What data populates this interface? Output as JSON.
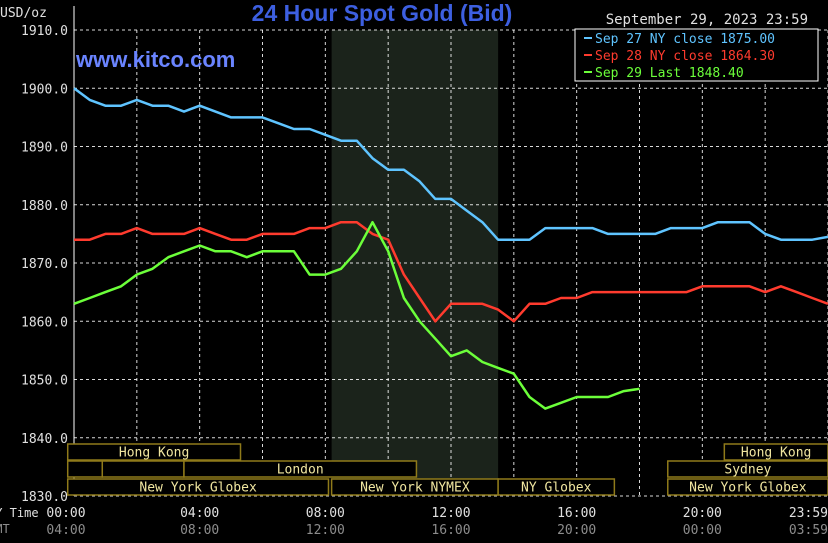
{
  "header": {
    "title": "24 Hour Spot Gold (Bid)",
    "date": "September 29, 2023 23:59",
    "units": "USD/oz",
    "watermark": "www.kitco.com"
  },
  "colors": {
    "background": "#000000",
    "grid": "#ffffff",
    "title": "#3d5fe0",
    "watermark": "#6a84ff",
    "session_shade": "#1b231b",
    "session_border": "#8f7a1a",
    "session_text": "#f0e6a0",
    "time_label": "#e0e0e0",
    "gmt_label": "#8c8c8c"
  },
  "chart_data": {
    "type": "line",
    "title": "24 Hour Spot Gold (Bid)",
    "ylabel": "USD/oz",
    "ylim": [
      1830,
      1910
    ],
    "xlim": [
      0,
      24
    ],
    "grid": true,
    "legend_position": "top-right",
    "y_ticks": [
      "1910.0",
      "1900.0",
      "1890.0",
      "1880.0",
      "1870.0",
      "1860.0",
      "1850.0",
      "1840.0",
      "1830.0"
    ],
    "y_tick_values": [
      1910,
      1900,
      1890,
      1880,
      1870,
      1860,
      1850,
      1840,
      1830
    ],
    "x_ticks_ny": [
      "00:00",
      "04:00",
      "08:00",
      "12:00",
      "16:00",
      "20:00",
      "23:59"
    ],
    "x_ticks_gmt": [
      "04:00",
      "08:00",
      "12:00",
      "16:00",
      "20:00",
      "00:00",
      "03:59"
    ],
    "x_tick_hours": [
      0,
      4,
      8,
      12,
      16,
      20,
      24
    ],
    "row_label_ny": "NY Time",
    "row_label_gmt": "GMT",
    "highlight_hours": [
      8.2,
      13.5
    ],
    "series": [
      {
        "name": "Sep 27 NY close 1875.00",
        "color": "#5fc4ff",
        "x": [
          0,
          0.5,
          1,
          1.5,
          2,
          2.5,
          3,
          3.5,
          4,
          4.5,
          5,
          5.5,
          6,
          6.5,
          7,
          7.5,
          8,
          8.5,
          9,
          9.5,
          10,
          10.5,
          11,
          11.5,
          12,
          12.5,
          13,
          13.5,
          14,
          14.5,
          15,
          15.5,
          16,
          16.5,
          17,
          17.5,
          18,
          18.5,
          19,
          19.5,
          20,
          20.5,
          21,
          21.5,
          22,
          22.5,
          23,
          23.5,
          24
        ],
        "values": [
          1900,
          1898,
          1897,
          1897,
          1898,
          1897,
          1897,
          1896,
          1897,
          1896,
          1895,
          1895,
          1895,
          1894,
          1893,
          1893,
          1892,
          1891,
          1891,
          1888,
          1886,
          1886,
          1884,
          1881,
          1881,
          1879,
          1877,
          1874,
          1874,
          1874,
          1876,
          1876,
          1876,
          1876,
          1875,
          1875,
          1875,
          1875,
          1876,
          1876,
          1876,
          1877,
          1877,
          1877,
          1875,
          1874,
          1874,
          1874,
          1874.5
        ]
      },
      {
        "name": "Sep 28 NY close 1864.30",
        "color": "#ff3b2e",
        "x": [
          0,
          0.5,
          1,
          1.5,
          2,
          2.5,
          3,
          3.5,
          4,
          4.5,
          5,
          5.5,
          6,
          6.5,
          7,
          7.5,
          8,
          8.5,
          9,
          9.5,
          10,
          10.5,
          11,
          11.5,
          12,
          12.5,
          13,
          13.5,
          14,
          14.5,
          15,
          15.5,
          16,
          16.5,
          17,
          17.5,
          18,
          18.5,
          19,
          19.5,
          20,
          20.5,
          21,
          21.5,
          22,
          22.5,
          23,
          23.5,
          24
        ],
        "values": [
          1874,
          1874,
          1875,
          1875,
          1876,
          1875,
          1875,
          1875,
          1876,
          1875,
          1874,
          1874,
          1875,
          1875,
          1875,
          1876,
          1876,
          1877,
          1877,
          1875,
          1874,
          1868,
          1864,
          1860,
          1863,
          1863,
          1863,
          1862,
          1860,
          1863,
          1863,
          1864,
          1864,
          1865,
          1865,
          1865,
          1865,
          1865,
          1865,
          1865,
          1866,
          1866,
          1866,
          1866,
          1865,
          1866,
          1865,
          1864,
          1863
        ]
      },
      {
        "name": "Sep 29 Last 1848.40",
        "color": "#6cff3a",
        "x": [
          0,
          0.5,
          1,
          1.5,
          2,
          2.5,
          3,
          3.5,
          4,
          4.5,
          5,
          5.5,
          6,
          6.5,
          7,
          7.5,
          8,
          8.5,
          9,
          9.5,
          10,
          10.5,
          11,
          11.5,
          12,
          12.5,
          13,
          13.5,
          14,
          14.5,
          15,
          15.5,
          16,
          16.5,
          17,
          17.5,
          18
        ],
        "values": [
          1863,
          1864,
          1865,
          1866,
          1868,
          1869,
          1871,
          1872,
          1873,
          1872,
          1872,
          1871,
          1872,
          1872,
          1872,
          1868,
          1868,
          1869,
          1872,
          1877,
          1872,
          1864,
          1860,
          1857,
          1854,
          1855,
          1853,
          1852,
          1851,
          1847,
          1845,
          1846,
          1847,
          1847,
          1847,
          1848,
          1848.4
        ]
      }
    ],
    "sessions": [
      {
        "label": "Hong Kong",
        "row": 0,
        "start": -0.2,
        "end": 5.3,
        "labeled": true
      },
      {
        "label": "Hong Kong",
        "row": 0,
        "start": 20.7,
        "end": 24.2,
        "labeled": true
      },
      {
        "label": "",
        "row": 1,
        "start": -0.2,
        "end": 0.9,
        "labeled": false
      },
      {
        "label": "",
        "row": 1,
        "start": 0.9,
        "end": 3.5,
        "labeled": false
      },
      {
        "label": "London",
        "row": 1,
        "start": 3.5,
        "end": 10.9,
        "labeled": true
      },
      {
        "label": "Sydney",
        "row": 1,
        "start": 18.9,
        "end": 24.2,
        "labeled": true
      },
      {
        "label": "New York Globex",
        "row": 2,
        "start": -0.2,
        "end": 8.1,
        "labeled": true
      },
      {
        "label": "New York NYMEX",
        "row": 2,
        "start": 8.2,
        "end": 13.5,
        "labeled": true
      },
      {
        "label": "NY Globex",
        "row": 2,
        "start": 13.5,
        "end": 17.2,
        "labeled": true
      },
      {
        "label": "New York Globex",
        "row": 2,
        "start": 18.9,
        "end": 24.2,
        "labeled": true
      }
    ]
  }
}
